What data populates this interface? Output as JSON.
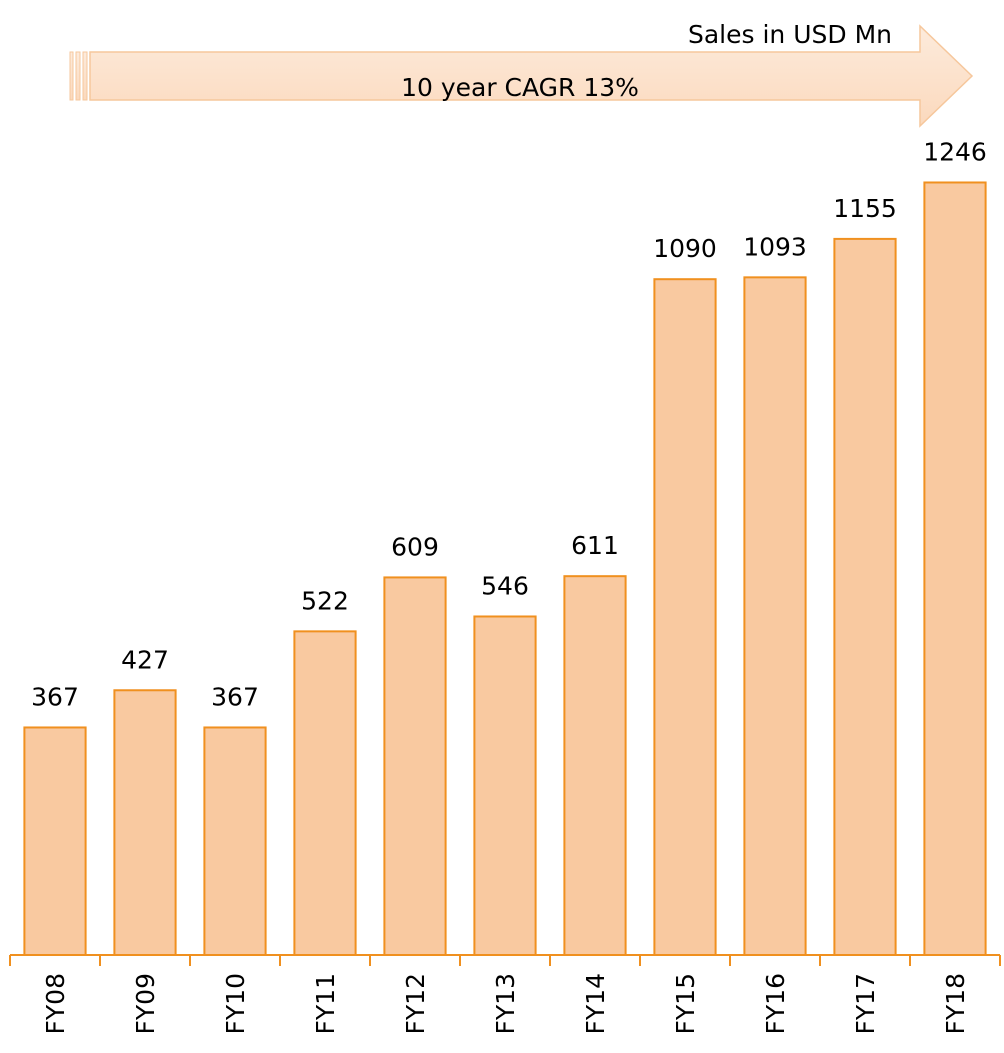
{
  "chart_data": {
    "type": "bar",
    "title": "Sales in USD Mn",
    "annotation": "10 year CAGR 13%",
    "categories": [
      "FY08",
      "FY09",
      "FY10",
      "FY11",
      "FY12",
      "FY13",
      "FY14",
      "FY15",
      "FY16",
      "FY17",
      "FY18"
    ],
    "values": [
      367,
      427,
      367,
      522,
      609,
      546,
      611,
      1090,
      1093,
      1155,
      1246
    ],
    "color": "#f9c9a0",
    "edge_color": "#f0901f",
    "ylim": [
      0,
      1300
    ],
    "grid": false
  }
}
